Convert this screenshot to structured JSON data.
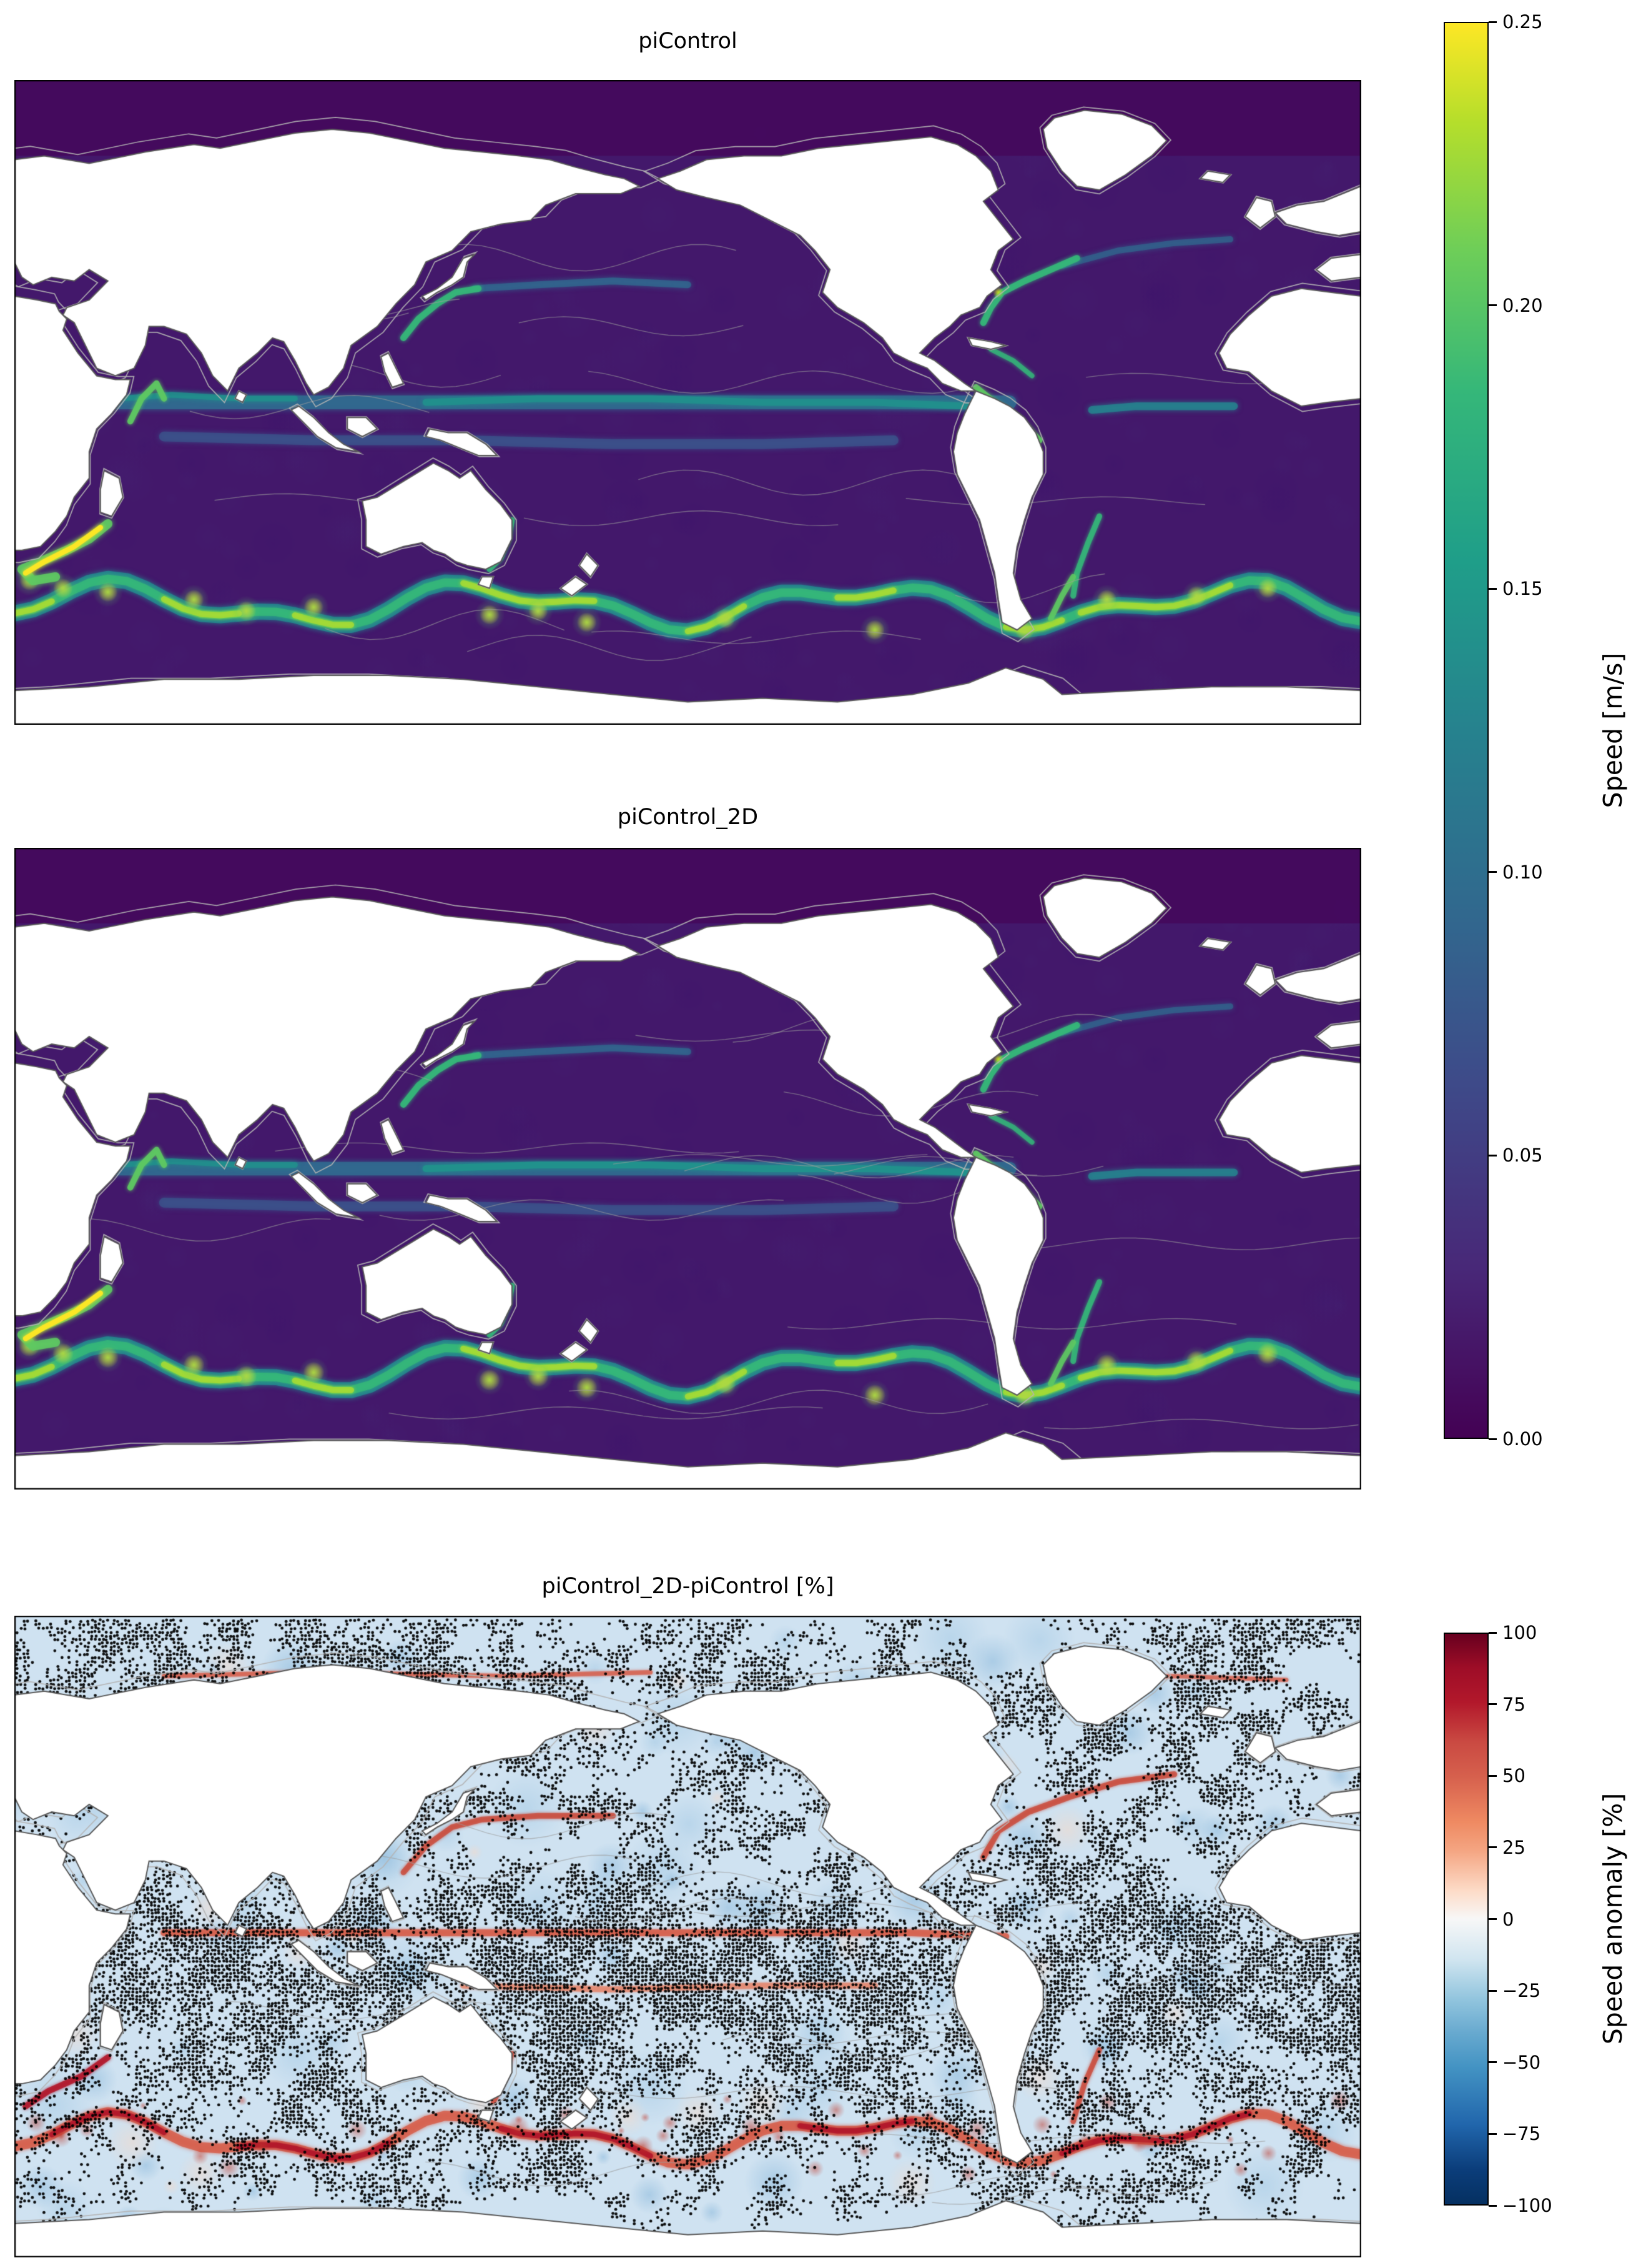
{
  "figure": {
    "panels": [
      {
        "title": "piControl"
      },
      {
        "title": "piControl_2D"
      },
      {
        "title": "piControl_2D-piControl [%]"
      }
    ],
    "colorbar_speed": {
      "label": "Speed [m/s]",
      "ticks": [
        "0.25",
        "0.20",
        "0.15",
        "0.10",
        "0.05",
        "0.00"
      ]
    },
    "colorbar_anomaly": {
      "label": "Speed anomaly [%]",
      "ticks": [
        "100",
        "75",
        "50",
        "25",
        "0",
        "−25",
        "−50",
        "−75",
        "−100"
      ]
    }
  },
  "colors": {
    "ocean_slow": "#440154",
    "ocean_base": "#43186b",
    "ocean_fast": "#fde725",
    "current_teal": "#21918c",
    "current_green": "#35b779",
    "current_yellow": "#fde725",
    "anomaly_positive": "#b2182b",
    "anomaly_streak": "#d6604d",
    "anomaly_base": "#cfe2f1",
    "anomaly_negative": "#7fb2d8",
    "land": "#ffffff",
    "coastline": "#5a5a5a",
    "contour_gray": "#9c9c9c",
    "stipple": "#000000"
  },
  "chart_data": [
    {
      "type": "heatmap",
      "title": "piControl",
      "variable": "ocean surface current speed",
      "units": "m/s",
      "colormap": "viridis",
      "vmin": 0.0,
      "vmax": 0.25,
      "colorbar_label": "Speed [m/s]",
      "colorbar_ticks": [
        0.0,
        0.05,
        0.1,
        0.15,
        0.2,
        0.25
      ],
      "projection": "global plate carree, Pacific-centered (lon ~20E to 380E, lat ~80S to 90N)",
      "notable_features": [
        "Antarctic Circumpolar Current band near 45-60S with bright green/yellow speeds up to ~0.25 m/s",
        "Equatorial current band ~0.08-0.15 m/s across Indian, Pacific and Atlantic Oceans",
        "Agulhas Current/retroflection bright yellow near South Africa",
        "Western boundary currents (Kuroshio, Gulf Stream, East Australian, Brazil/Malvinas, Somali) in green ~0.15 m/s",
        "Quiet dark-purple ocean interior ~0.00-0.05 m/s",
        "Thin gray bathymetry and coastline contour lines; continents in white"
      ]
    },
    {
      "type": "heatmap",
      "title": "piControl_2D",
      "variable": "ocean surface current speed",
      "units": "m/s",
      "colormap": "viridis",
      "vmin": 0.0,
      "vmax": 0.25,
      "colorbar_label": "Speed [m/s]",
      "colorbar_ticks": [
        0.0,
        0.05,
        0.1,
        0.15,
        0.2,
        0.25
      ],
      "projection": "global plate carree, Pacific-centered (lon ~20E to 380E, lat ~80S to 90N)",
      "notable_features": [
        "Nearly identical pattern to piControl panel",
        "Antarctic Circumpolar Current band with yellow/green maxima",
        "Equatorial Pacific teal band slightly more continuous",
        "Western boundary currents and Agulhas retroflection visible"
      ]
    },
    {
      "type": "heatmap",
      "title": "piControl_2D-piControl [%]",
      "variable": "relative difference of surface speed (piControl_2D minus piControl)",
      "units": "%",
      "colormap": "RdBu_r",
      "vmin": -100,
      "vmax": 100,
      "colorbar_label": "Speed anomaly [%]",
      "colorbar_ticks": [
        -100,
        -75,
        -50,
        -25,
        0,
        25,
        50,
        75,
        100
      ],
      "projection": "global plate carree, Pacific-centered (lon ~20E to 380E, lat ~80S to 90N)",
      "notable_features": [
        "Widespread weak negative anomalies (light blue, roughly -25 to -50%)",
        "Red positive anomaly streaks along the equator, the Antarctic Circumpolar Current and western boundary currents (up to ~+100%)",
        "Dense black stippling covering much of the tropical/subtropical ocean interior (significance/large-change mask)",
        "Stipple bands also along the Arctic edge and northern North Atlantic"
      ]
    }
  ]
}
